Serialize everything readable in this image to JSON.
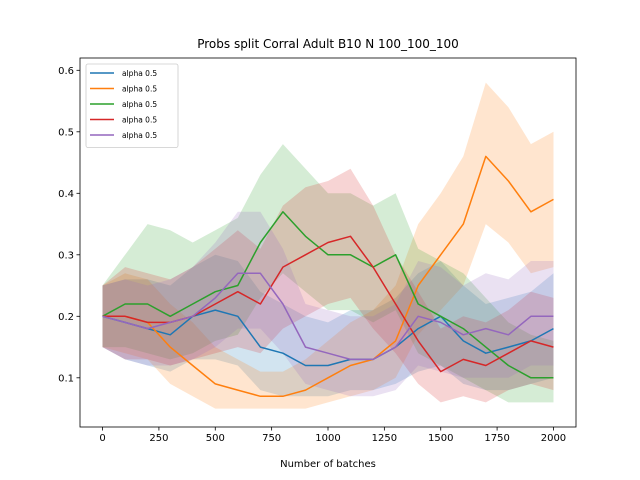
{
  "chart_data": {
    "type": "line",
    "title": "Probs split Corral Adult B10 N 100_100_100",
    "xlabel": "Number of batches",
    "ylabel": "",
    "xlim": [
      -100,
      2100
    ],
    "ylim": [
      0.02,
      0.62
    ],
    "x_ticks": [
      0,
      250,
      500,
      750,
      1000,
      1250,
      1500,
      1750,
      2000
    ],
    "y_ticks": [
      0.1,
      0.2,
      0.3,
      0.4,
      0.5,
      0.6
    ],
    "x_tick_labels": [
      "0",
      "250",
      "500",
      "750",
      "1000",
      "1250",
      "1500",
      "1750",
      "2000"
    ],
    "y_tick_labels": [
      "0.1",
      "0.2",
      "0.3",
      "0.4",
      "0.5",
      "0.6"
    ],
    "grid": false,
    "legend_position": "top-left",
    "has_confidence_bands": true,
    "x": [
      0,
      100,
      200,
      300,
      400,
      500,
      600,
      700,
      800,
      900,
      1000,
      1100,
      1200,
      1300,
      1400,
      1500,
      1600,
      1700,
      1800,
      1900,
      2000
    ],
    "series": [
      {
        "name": "alpha 0.5",
        "color": "#1f77b4",
        "values": [
          0.2,
          0.19,
          0.18,
          0.17,
          0.2,
          0.21,
          0.2,
          0.15,
          0.14,
          0.12,
          0.12,
          0.13,
          0.13,
          0.15,
          0.18,
          0.2,
          0.16,
          0.14,
          0.15,
          0.16,
          0.18
        ],
        "lower": [
          0.15,
          0.13,
          0.12,
          0.11,
          0.13,
          0.13,
          0.12,
          0.08,
          0.07,
          0.07,
          0.07,
          0.08,
          0.08,
          0.09,
          0.11,
          0.12,
          0.09,
          0.08,
          0.08,
          0.09,
          0.1
        ],
        "upper": [
          0.25,
          0.26,
          0.26,
          0.25,
          0.28,
          0.3,
          0.29,
          0.24,
          0.22,
          0.2,
          0.19,
          0.21,
          0.21,
          0.23,
          0.27,
          0.29,
          0.25,
          0.22,
          0.23,
          0.24,
          0.27
        ]
      },
      {
        "name": "alpha 0.5",
        "color": "#ff7f0e",
        "values": [
          0.2,
          0.2,
          0.19,
          0.15,
          0.12,
          0.09,
          0.08,
          0.07,
          0.07,
          0.08,
          0.1,
          0.12,
          0.13,
          0.16,
          0.25,
          0.3,
          0.35,
          0.46,
          0.42,
          0.37,
          0.39
        ],
        "lower": [
          0.15,
          0.14,
          0.13,
          0.09,
          0.07,
          0.05,
          0.05,
          0.05,
          0.05,
          0.05,
          0.06,
          0.07,
          0.08,
          0.1,
          0.17,
          0.21,
          0.25,
          0.35,
          0.32,
          0.27,
          0.28
        ],
        "upper": [
          0.25,
          0.27,
          0.26,
          0.22,
          0.19,
          0.15,
          0.13,
          0.11,
          0.11,
          0.13,
          0.16,
          0.19,
          0.21,
          0.25,
          0.35,
          0.4,
          0.46,
          0.58,
          0.54,
          0.48,
          0.5
        ]
      },
      {
        "name": "alpha 0.5",
        "color": "#2ca02c",
        "values": [
          0.2,
          0.22,
          0.22,
          0.2,
          0.22,
          0.24,
          0.25,
          0.32,
          0.37,
          0.33,
          0.3,
          0.3,
          0.28,
          0.3,
          0.22,
          0.2,
          0.18,
          0.15,
          0.12,
          0.1,
          0.1
        ],
        "lower": [
          0.15,
          0.15,
          0.14,
          0.13,
          0.14,
          0.16,
          0.17,
          0.23,
          0.27,
          0.24,
          0.21,
          0.21,
          0.19,
          0.21,
          0.14,
          0.12,
          0.1,
          0.08,
          0.06,
          0.06,
          0.06
        ],
        "upper": [
          0.25,
          0.3,
          0.35,
          0.34,
          0.32,
          0.34,
          0.36,
          0.43,
          0.48,
          0.44,
          0.4,
          0.4,
          0.38,
          0.4,
          0.31,
          0.29,
          0.27,
          0.23,
          0.19,
          0.17,
          0.16
        ]
      },
      {
        "name": "alpha 0.5",
        "color": "#d62728",
        "values": [
          0.2,
          0.2,
          0.19,
          0.19,
          0.2,
          0.22,
          0.24,
          0.22,
          0.28,
          0.3,
          0.32,
          0.33,
          0.28,
          0.22,
          0.16,
          0.11,
          0.13,
          0.12,
          0.14,
          0.16,
          0.15
        ],
        "lower": [
          0.15,
          0.13,
          0.13,
          0.12,
          0.13,
          0.14,
          0.15,
          0.14,
          0.18,
          0.2,
          0.22,
          0.23,
          0.18,
          0.14,
          0.09,
          0.06,
          0.07,
          0.06,
          0.08,
          0.09,
          0.08
        ],
        "upper": [
          0.25,
          0.28,
          0.27,
          0.26,
          0.28,
          0.31,
          0.34,
          0.31,
          0.38,
          0.41,
          0.42,
          0.44,
          0.38,
          0.3,
          0.24,
          0.18,
          0.2,
          0.19,
          0.21,
          0.24,
          0.23
        ]
      },
      {
        "name": "alpha 0.5",
        "color": "#9467bd",
        "values": [
          0.2,
          0.19,
          0.18,
          0.19,
          0.2,
          0.23,
          0.27,
          0.27,
          0.22,
          0.15,
          0.14,
          0.13,
          0.13,
          0.15,
          0.2,
          0.19,
          0.17,
          0.18,
          0.17,
          0.2,
          0.2
        ],
        "lower": [
          0.15,
          0.13,
          0.12,
          0.12,
          0.13,
          0.15,
          0.18,
          0.18,
          0.14,
          0.09,
          0.08,
          0.07,
          0.07,
          0.08,
          0.12,
          0.11,
          0.1,
          0.1,
          0.1,
          0.12,
          0.12
        ],
        "upper": [
          0.25,
          0.26,
          0.25,
          0.26,
          0.28,
          0.32,
          0.37,
          0.37,
          0.31,
          0.22,
          0.21,
          0.2,
          0.2,
          0.22,
          0.29,
          0.28,
          0.25,
          0.27,
          0.26,
          0.29,
          0.29
        ]
      }
    ]
  }
}
